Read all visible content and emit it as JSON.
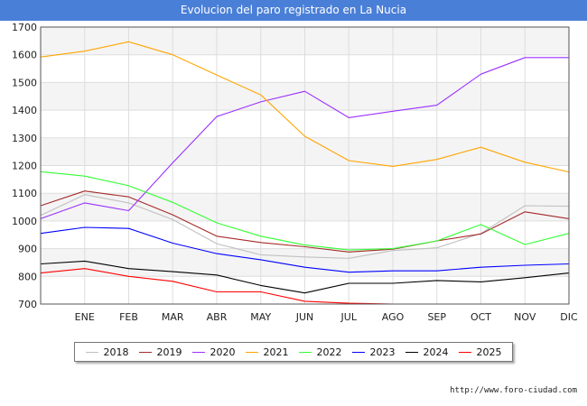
{
  "header": {
    "title": "Evolucion del paro registrado en La Nucia"
  },
  "watermark": "http://www.foro-ciudad.com",
  "chart_data": {
    "type": "line",
    "title": "Evolucion del paro registrado en La Nucia",
    "xlabel": "",
    "ylabel": "",
    "categories": [
      "",
      "ENE",
      "FEB",
      "MAR",
      "ABR",
      "MAY",
      "JUN",
      "JUL",
      "AGO",
      "SEP",
      "OCT",
      "NOV",
      "DIC"
    ],
    "ylim": [
      700,
      1700
    ],
    "yticks": [
      700,
      800,
      900,
      1000,
      1100,
      1200,
      1300,
      1400,
      1500,
      1600,
      1700
    ],
    "legend_position": "bottom",
    "series": [
      {
        "name": "2018",
        "color": "#c0c0c0",
        "values": [
          1020,
          1095,
          1065,
          1005,
          918,
          878,
          870,
          865,
          893,
          903,
          955,
          1055,
          1053
        ]
      },
      {
        "name": "2019",
        "color": "#a52a2a",
        "values": [
          1055,
          1108,
          1087,
          1022,
          945,
          922,
          907,
          888,
          898,
          928,
          953,
          1033,
          1008
        ]
      },
      {
        "name": "2020",
        "color": "#9b30ff",
        "values": [
          1008,
          1065,
          1037,
          1210,
          1377,
          1430,
          1468,
          1373,
          1396,
          1418,
          1530,
          1590,
          1590
        ]
      },
      {
        "name": "2021",
        "color": "#ffa500",
        "values": [
          1592,
          1613,
          1647,
          1600,
          1527,
          1455,
          1306,
          1218,
          1197,
          1222,
          1266,
          1212,
          1177
        ]
      },
      {
        "name": "2022",
        "color": "#33ff33",
        "values": [
          1178,
          1162,
          1127,
          1067,
          993,
          945,
          913,
          895,
          900,
          928,
          987,
          915,
          955
        ]
      },
      {
        "name": "2023",
        "color": "#0000ff",
        "values": [
          955,
          977,
          973,
          920,
          882,
          860,
          833,
          815,
          820,
          820,
          833,
          840,
          845
        ]
      },
      {
        "name": "2024",
        "color": "#000000",
        "values": [
          845,
          855,
          828,
          817,
          805,
          767,
          740,
          775,
          775,
          785,
          780,
          795,
          812
        ]
      },
      {
        "name": "2025",
        "color": "#ff0000",
        "values": [
          812,
          828,
          800,
          782,
          744,
          744,
          710,
          703,
          700,
          null,
          null,
          null,
          null
        ]
      }
    ]
  }
}
